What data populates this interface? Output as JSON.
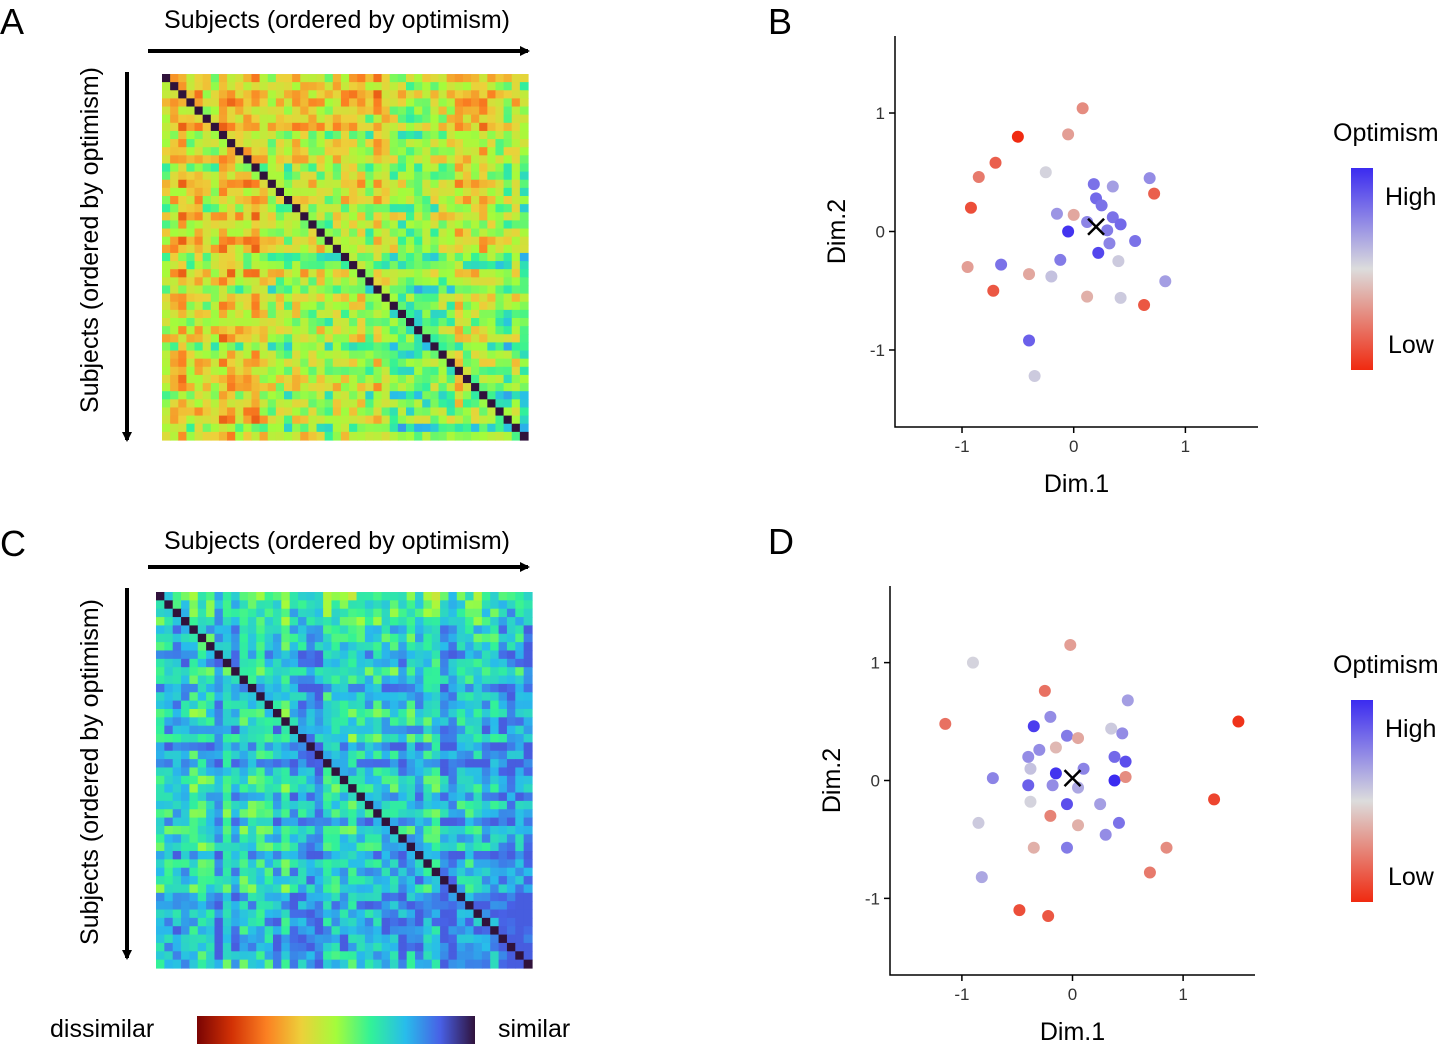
{
  "panels": {
    "A": {
      "label": "A",
      "top_label": "Subjects (ordered by optimism)",
      "side_label": "Subjects (ordered by optimism)",
      "chart_ref": "heatmap"
    },
    "B": {
      "label": "B",
      "chart_ref": "scatter"
    },
    "C": {
      "label": "C",
      "top_label": "Subjects (ordered by optimism)",
      "side_label": "Subjects (ordered by optimism)",
      "chart_ref": "heatmap"
    },
    "D": {
      "label": "D",
      "chart_ref": "scatter"
    }
  },
  "colorbar": {
    "left_label": "dissimilar",
    "right_label": "similar",
    "stops": [
      "#7a0403",
      "#d23105",
      "#fb8022",
      "#edd03a",
      "#a4fc3b",
      "#32f298",
      "#28bceb",
      "#4860e6",
      "#30123b"
    ]
  },
  "legend": {
    "title": "Optimism",
    "high_label": "High",
    "low_label": "Low",
    "high_color": "#3b2bf0",
    "mid_color": "#dcdcdc",
    "low_color": "#f02a10"
  },
  "chart_data": [
    {
      "panel": "A",
      "type": "heatmap",
      "description_x": "Subjects (ordered by optimism)",
      "description_y": "Subjects (ordered by optimism)",
      "n": 45,
      "value_range": [
        0,
        1
      ],
      "seed": 7,
      "base_similarity": 0.45,
      "gradient": 0.18,
      "noise": 0.18
    },
    {
      "panel": "B",
      "type": "scatter",
      "xlabel": "Dim.1",
      "ylabel": "Dim.2",
      "xlim": [
        -1.6,
        1.65
      ],
      "ylim": [
        -1.65,
        1.65
      ],
      "xticks": [
        -1,
        0,
        1
      ],
      "yticks": [
        -1,
        0,
        1
      ],
      "xtick_labels": [
        "-1",
        "0",
        "1"
      ],
      "ytick_labels": [
        "-1",
        "0",
        "1"
      ],
      "centroid": [
        0.2,
        0.04
      ],
      "points": [
        [
          -0.5,
          0.8,
          -1
        ],
        [
          0.08,
          1.04,
          -0.45
        ],
        [
          -0.05,
          0.82,
          -0.35
        ],
        [
          -0.7,
          0.58,
          -0.7
        ],
        [
          -0.85,
          0.46,
          -0.55
        ],
        [
          -0.25,
          0.5,
          0.05
        ],
        [
          -0.92,
          0.2,
          -0.8
        ],
        [
          0.18,
          0.4,
          0.6
        ],
        [
          0.35,
          0.38,
          0.35
        ],
        [
          0.68,
          0.45,
          0.45
        ],
        [
          0.72,
          0.32,
          -0.7
        ],
        [
          0.2,
          0.28,
          0.65
        ],
        [
          0.25,
          0.22,
          0.6
        ],
        [
          -0.15,
          0.15,
          0.4
        ],
        [
          0.0,
          0.14,
          -0.3
        ],
        [
          0.35,
          0.12,
          0.6
        ],
        [
          0.42,
          0.06,
          0.65
        ],
        [
          0.3,
          0.01,
          0.55
        ],
        [
          0.12,
          0.08,
          0.5
        ],
        [
          -0.05,
          0.0,
          0.95
        ],
        [
          0.32,
          -0.1,
          0.5
        ],
        [
          0.55,
          -0.08,
          0.6
        ],
        [
          0.22,
          -0.18,
          0.85
        ],
        [
          -0.12,
          -0.24,
          0.55
        ],
        [
          -0.95,
          -0.3,
          -0.35
        ],
        [
          -0.65,
          -0.28,
          0.6
        ],
        [
          -0.4,
          -0.36,
          -0.3
        ],
        [
          -0.2,
          -0.38,
          0.15
        ],
        [
          0.4,
          -0.25,
          0.1
        ],
        [
          0.82,
          -0.42,
          0.35
        ],
        [
          -0.72,
          -0.5,
          -0.75
        ],
        [
          0.12,
          -0.55,
          -0.25
        ],
        [
          0.42,
          -0.56,
          0.1
        ],
        [
          0.63,
          -0.62,
          -0.75
        ],
        [
          -0.4,
          -0.92,
          0.7
        ],
        [
          -0.35,
          -1.22,
          0.1
        ]
      ]
    },
    {
      "panel": "C",
      "type": "heatmap",
      "description_x": "Subjects (ordered by optimism)",
      "description_y": "Subjects (ordered by optimism)",
      "n": 45,
      "value_range": [
        0,
        1
      ],
      "seed": 21,
      "base_similarity": 0.72,
      "gradient": 0.12,
      "noise": 0.16
    },
    {
      "panel": "D",
      "type": "scatter",
      "xlabel": "Dim.1",
      "ylabel": "Dim.2",
      "xlim": [
        -1.65,
        1.65
      ],
      "ylim": [
        -1.65,
        1.65
      ],
      "xticks": [
        -1,
        0,
        1
      ],
      "yticks": [
        -1,
        0,
        1
      ],
      "xtick_labels": [
        "-1",
        "0",
        "1"
      ],
      "ytick_labels": [
        "-1",
        "0",
        "1"
      ],
      "centroid": [
        0.0,
        0.02
      ],
      "points": [
        [
          -0.9,
          1.0,
          0.05
        ],
        [
          -0.02,
          1.15,
          -0.35
        ],
        [
          -1.15,
          0.48,
          -0.6
        ],
        [
          1.5,
          0.5,
          -0.95
        ],
        [
          -0.25,
          0.76,
          -0.6
        ],
        [
          -0.2,
          0.54,
          0.45
        ],
        [
          -0.35,
          0.46,
          0.9
        ],
        [
          0.5,
          0.68,
          0.35
        ],
        [
          0.35,
          0.44,
          0.1
        ],
        [
          0.45,
          0.4,
          0.45
        ],
        [
          -0.05,
          0.38,
          0.55
        ],
        [
          -0.3,
          0.26,
          0.45
        ],
        [
          -0.15,
          0.28,
          -0.2
        ],
        [
          0.05,
          0.36,
          -0.3
        ],
        [
          -0.4,
          0.2,
          0.45
        ],
        [
          0.1,
          0.1,
          0.5
        ],
        [
          0.38,
          0.2,
          0.65
        ],
        [
          0.48,
          0.16,
          0.8
        ],
        [
          -0.38,
          0.1,
          0.15
        ],
        [
          -0.15,
          0.06,
          0.95
        ],
        [
          -0.72,
          0.02,
          0.5
        ],
        [
          -0.4,
          -0.04,
          0.7
        ],
        [
          -0.18,
          -0.04,
          0.45
        ],
        [
          0.05,
          -0.06,
          0.3
        ],
        [
          0.38,
          0.0,
          1.0
        ],
        [
          0.48,
          0.03,
          -0.45
        ],
        [
          -0.05,
          -0.2,
          0.8
        ],
        [
          0.25,
          -0.2,
          0.35
        ],
        [
          -0.38,
          -0.18,
          0.05
        ],
        [
          -0.2,
          -0.3,
          -0.5
        ],
        [
          0.05,
          -0.38,
          -0.25
        ],
        [
          0.42,
          -0.36,
          0.6
        ],
        [
          0.3,
          -0.46,
          0.45
        ],
        [
          -0.85,
          -0.36,
          0.1
        ],
        [
          -0.35,
          -0.57,
          -0.25
        ],
        [
          -0.05,
          -0.57,
          0.55
        ],
        [
          0.85,
          -0.57,
          -0.45
        ],
        [
          -0.82,
          -0.82,
          0.3
        ],
        [
          0.7,
          -0.78,
          -0.55
        ],
        [
          1.28,
          -0.16,
          -0.85
        ],
        [
          -0.48,
          -1.1,
          -0.8
        ],
        [
          -0.22,
          -1.15,
          -0.75
        ]
      ]
    }
  ]
}
